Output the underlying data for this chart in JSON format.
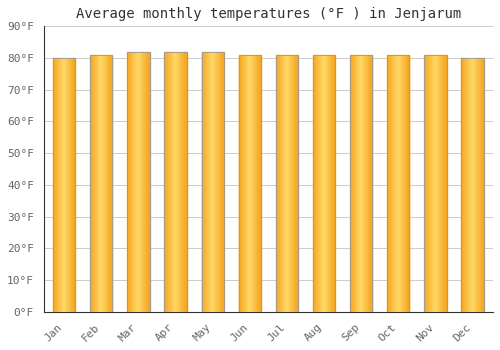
{
  "title": "Average monthly temperatures (°F ) in Jenjarum",
  "months": [
    "Jan",
    "Feb",
    "Mar",
    "Apr",
    "May",
    "Jun",
    "Jul",
    "Aug",
    "Sep",
    "Oct",
    "Nov",
    "Dec"
  ],
  "values": [
    80,
    81,
    82,
    82,
    82,
    81,
    81,
    81,
    81,
    81,
    81,
    80
  ],
  "bar_color_center": "#FFD966",
  "bar_color_edge": "#F5A623",
  "bar_edge_color": "#999999",
  "background_color": "#FFFFFF",
  "plot_bg_color": "#FFFFFF",
  "grid_color": "#CCCCCC",
  "ylim": [
    0,
    90
  ],
  "ytick_step": 10,
  "title_fontsize": 10,
  "tick_fontsize": 8,
  "font_family": "monospace",
  "bar_width": 0.6,
  "n_gradient_steps": 30
}
